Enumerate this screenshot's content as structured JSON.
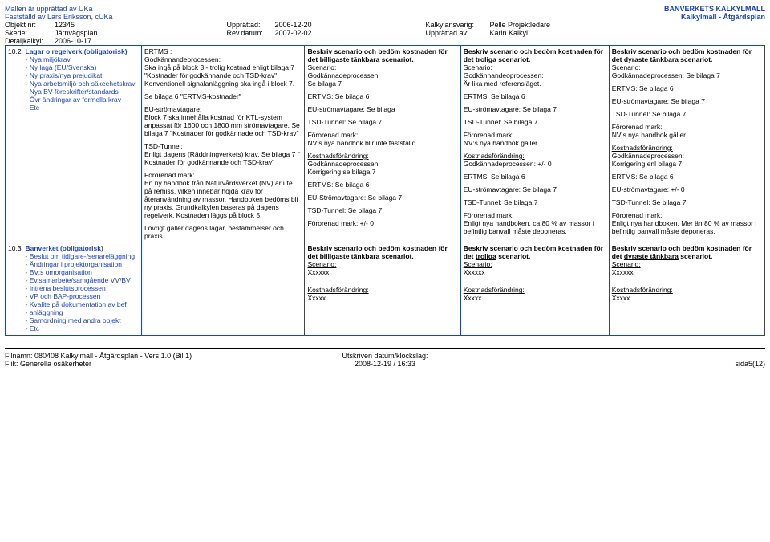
{
  "header": {
    "line1": "Mallen är upprättad av UKa",
    "line2": "Fastställd av Lars Eriksson, cUKa",
    "obj_k": "Objekt nr:",
    "obj_v": "12345",
    "skede_k": "Skede:",
    "skede_v": "Järnvägsplan",
    "det_k": "Detaljkalkyl:",
    "det_v": "2006-10-17",
    "upp_k": "Upprättad:",
    "upp_v": "2006-12-20",
    "rev_k": "Rev.datum:",
    "rev_v": "2007-02-02",
    "kalk_k": "Kalkylansvarig:",
    "kalk_v": "Pelle Projektledare",
    "uppav_k": "Upprättad av:",
    "uppav_v": "Karin Kalkyl",
    "right1": "BANVERKETS KALKYLMALL",
    "right2": "Kalkylmall - Åtgärdsplan"
  },
  "row102": {
    "num": "10.2",
    "title": "Lagar o regelverk (obligatorisk)",
    "bul": [
      "Nya miljökrav",
      "Ny lagá (EU/Svenska)",
      "Ny praxis/nya prejudikat",
      "Nya arbetsmiljö och säkeehetskrav",
      "Nya BV-föreskrifter/standards",
      "Övr ändringar av formella krav",
      "Etc"
    ],
    "c2a": "ERTMS :",
    "c2b": "Godkännandeprocessen:",
    "c2c": "Ska ingå på block 3 - trolig kostnad enligt bilaga 7 \"Kostnader för godkännande och TSD-krav\" Konventionell signalanläggning ska ingå i block 7.",
    "c2d": "Se bilaga 6 \"ERTMS-kostnader\"",
    "c2e": "EU-strömavtagare:",
    "c2f": "Block 7 ska innehålla kostnad för KTL-system anpassat för 1600 och 1800 mm strömavtagare. Se bilaga 7 \"Kostnader för godkännade och TSD-krav\"",
    "c2g": "TSD-Tunnel:",
    "c2h": "Enligt dagens (Räddningverkets) krav. Se bilaga 7 \" Kostnader för godkännande och TSD-krav\"",
    "c2i": "Förorenad mark:",
    "c2j": "En ny handbok från Naturvårdsverket (NV) är ute på remiss, vilken innebär höjda krav för återanvändning av massor. Handboken bedöms bli ny praxis. Grundkalkylen baseras på dagens regelverk. Kostnaden läggs på block 5.",
    "c2k": "I övrigt gäller dagens lagar, bestämmelser och praxis.",
    "c3_h1": "Beskriv scenario och bedöm kostnaden för det billigaste tänkbara scenariot.",
    "c3_sc": "Scenario:",
    "c3_a": "Godkännadeprocessen:",
    "c3_b": "Se bilaga 7",
    "c3_c": "ERTMS: Se bilaga 6",
    "c3_d": "EU-strömavtagare: Se bilaga",
    "c3_e": "TSD-Tunnel: Se bilaga 7",
    "c3_f": "Förorenad mark:",
    "c3_g": "NV:s nya handbok blir inte fastställd.",
    "c3_kf": "Kostnadsförändring:",
    "c3_k1": "Godkännadeprocessen:",
    "c3_k2": "Korrigering se bilaga 7",
    "c3_k3": "ERTMS: Se bilaga 6",
    "c3_k4": "EU-Strömavtagare: Se bilaga 7",
    "c3_k5": "TSD-Tunnel: Se bilaga 7",
    "c3_k6": "Förorenad mark: +/- 0",
    "c4_h1a": "Beskriv scenario och bedöm kostnaden för det ",
    "c4_h1b": "troliga",
    "c4_h1c": " scenariot.",
    "c4_a": "Godkännandeoprocessen:",
    "c4_b": "Är lika med referensläget.",
    "c4_c": "ERTMS: Se bilaga 6",
    "c4_d": "EU-strömavtagare: Se bilaga 7",
    "c4_e": "TSD-Tunnel: Se bilaga 7",
    "c4_f": "Förorenad mark:",
    "c4_g": "NV:s nya handbok gäller.",
    "c4_k1": "Godkännadeprocessen: +/- 0",
    "c4_k2": "ERTMS: Se bilaga 6",
    "c4_k3": "EU-strömavtagare: Se bilaga 7",
    "c4_k4": "TSD-Tunnel: Se bilaga 7",
    "c4_k5a": "Förorenad mark:",
    "c4_k5b": "Enligt nya handboken, ca 80 % av massor i befintlig banvall måste deponeras.",
    "c5_h1a": "Beskriv scenario och bedöm kostnaden för det ",
    "c5_h1b": "dyraste tänkbara",
    "c5_h1c": " scenariot.",
    "c5_a": "Godkännadeprocessen: Se bilaga 7",
    "c5_b": "ERTMS: Se bilaga 6",
    "c5_c": "EU-strömavtagare: Se bilaga 7",
    "c5_d": "TSD-Tunnel: Se bilaga 7",
    "c5_e": "Förorenad mark:",
    "c5_f": "NV:s nya handbok gäller.",
    "c5_k1": "Godkännadeprocessen:",
    "c5_k2": "Korrigering enl bilaga 7",
    "c5_k3": "ERTMS: Se bilaga 6",
    "c5_k4": "EU-strömavtagare: +/- 0",
    "c5_k5": "TSD-Tunnel: Se bilaga 7",
    "c5_k6a": "Förorenad mark:",
    "c5_k6b": "Enligt nya handboken, Mer än 80 % av massor i befintlig banvall måste deponeras."
  },
  "row103": {
    "num": "10.3",
    "title": "Banverket (obligatorisk)",
    "bul": [
      "Beslut om tidigare-/senareläggning",
      "Ändringar i projektorganisation",
      "BV:s omorganisation",
      "Ev.samarbete/samgående VV/BV",
      "Intrena beslutsprocessen",
      "VP och BAP-processen",
      "Kvalite på dokumentation av bef",
      "anläggning",
      "Samordning med andra objekt",
      "Etc"
    ],
    "c3_h": "Beskriv scenario och bedöm kostnaden för det billigaste tänkbara scenariot.",
    "c3_sc": "Scenario:",
    "c3_x": "Xxxxxx",
    "c3_kf": "Kostnadsförändring:",
    "c3_x2": "Xxxxx",
    "c4_h1a": "Beskriv scenario och bedöm kostnaden för det ",
    "c4_h1b": "troliga",
    "c4_h1c": " scenariot.",
    "c4_x": "Xxxxxx",
    "c4_x2": "Xxxxx",
    "c5_h1a": "Beskriv scenario och bedöm kostnaden för det ",
    "c5_h1b": "dyraste tänkbara",
    "c5_h1c": " scenariot.",
    "c5_x": "Xxxxxx",
    "c5_x2": "Xxxxx"
  },
  "footer": {
    "l1": "Filnamn: 080408 Kalkylmall - Åtgärdsplan - Vers 1.0 (Bil 1)",
    "l2": "Flik: Generella osäkerheter",
    "c1": "Utskriven datum/klockslag:",
    "c2": "2008-12-19 / 16:33",
    "r": "sida5(12)"
  }
}
